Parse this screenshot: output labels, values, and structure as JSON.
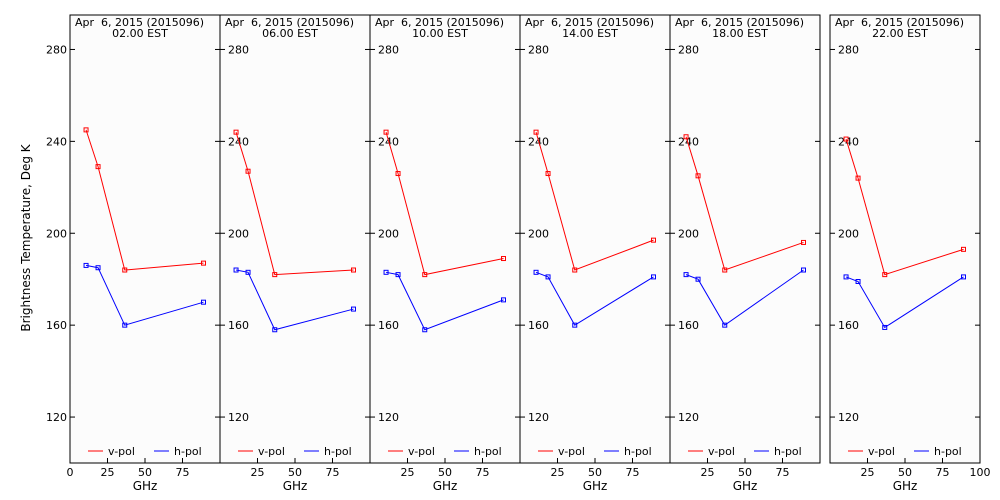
{
  "figure": {
    "ylabel": "Brightness Temperature, Deg K",
    "xlabel": "GHz"
  },
  "legend": {
    "v_label": "v-pol",
    "h_label": "h-pol"
  },
  "colors": {
    "v_pol": "#ff0000",
    "h_pol": "#0000ff",
    "panel_bg": "#fcfcfc",
    "frame": "#000000"
  },
  "chart_data": [
    {
      "type": "line",
      "title": "Apr  6, 2015 (2015096)",
      "subtitle": "02.00 EST",
      "xlabel": "GHz",
      "ylabel": "Brightness Temperature, Deg K",
      "xlim": [
        0,
        100
      ],
      "ylim": [
        100,
        295
      ],
      "x_ticks": [
        0,
        25,
        50,
        75
      ],
      "x_tick_labels": [
        "0",
        "25",
        "50",
        "75"
      ],
      "y_ticks": [
        120,
        160,
        200,
        240,
        280
      ],
      "grid": false,
      "legend_position": "bottom",
      "series": [
        {
          "name": "v-pol",
          "x": [
            10.7,
            18.7,
            36.5,
            89.0
          ],
          "y": [
            245,
            229,
            184,
            187
          ]
        },
        {
          "name": "h-pol",
          "x": [
            10.7,
            18.7,
            36.5,
            89.0
          ],
          "y": [
            186,
            185,
            160,
            170
          ]
        }
      ]
    },
    {
      "type": "line",
      "title": "Apr  6, 2015 (2015096)",
      "subtitle": "06.00 EST",
      "xlabel": "GHz",
      "xlim": [
        0,
        100
      ],
      "ylim": [
        100,
        295
      ],
      "x_ticks": [
        25,
        50,
        75
      ],
      "x_tick_labels": [
        "25",
        "50",
        "75"
      ],
      "y_ticks": [
        120,
        160,
        200,
        240,
        280
      ],
      "grid": false,
      "legend_position": "bottom",
      "series": [
        {
          "name": "v-pol",
          "x": [
            10.7,
            18.7,
            36.5,
            89.0
          ],
          "y": [
            244,
            227,
            182,
            184
          ]
        },
        {
          "name": "h-pol",
          "x": [
            10.7,
            18.7,
            36.5,
            89.0
          ],
          "y": [
            184,
            183,
            158,
            167
          ]
        }
      ]
    },
    {
      "type": "line",
      "title": "Apr  6, 2015 (2015096)",
      "subtitle": "10.00 EST",
      "xlabel": "GHz",
      "xlim": [
        0,
        100
      ],
      "ylim": [
        100,
        295
      ],
      "x_ticks": [
        25,
        50,
        75
      ],
      "x_tick_labels": [
        "25",
        "50",
        "75"
      ],
      "y_ticks": [
        120,
        160,
        200,
        240,
        280
      ],
      "grid": false,
      "legend_position": "bottom",
      "series": [
        {
          "name": "v-pol",
          "x": [
            10.7,
            18.7,
            36.5,
            89.0
          ],
          "y": [
            244,
            226,
            182,
            189
          ]
        },
        {
          "name": "h-pol",
          "x": [
            10.7,
            18.7,
            36.5,
            89.0
          ],
          "y": [
            183,
            182,
            158,
            171
          ]
        }
      ]
    },
    {
      "type": "line",
      "title": "Apr  6, 2015 (2015096)",
      "subtitle": "14.00 EST",
      "xlabel": "GHz",
      "xlim": [
        0,
        100
      ],
      "ylim": [
        100,
        295
      ],
      "x_ticks": [
        25,
        50,
        75
      ],
      "x_tick_labels": [
        "25",
        "50",
        "75"
      ],
      "y_ticks": [
        120,
        160,
        200,
        240,
        280
      ],
      "grid": false,
      "legend_position": "bottom",
      "series": [
        {
          "name": "v-pol",
          "x": [
            10.7,
            18.7,
            36.5,
            89.0
          ],
          "y": [
            244,
            226,
            184,
            197
          ]
        },
        {
          "name": "h-pol",
          "x": [
            10.7,
            18.7,
            36.5,
            89.0
          ],
          "y": [
            183,
            181,
            160,
            181
          ]
        }
      ]
    },
    {
      "type": "line",
      "title": "Apr  6, 2015 (2015096)",
      "subtitle": "18.00 EST",
      "xlabel": "GHz",
      "xlim": [
        0,
        100
      ],
      "ylim": [
        100,
        295
      ],
      "x_ticks": [
        25,
        50,
        75
      ],
      "x_tick_labels": [
        "25",
        "50",
        "75"
      ],
      "y_ticks": [
        120,
        160,
        200,
        240,
        280
      ],
      "grid": false,
      "legend_position": "bottom",
      "series": [
        {
          "name": "v-pol",
          "x": [
            10.7,
            18.7,
            36.5,
            89.0
          ],
          "y": [
            242,
            225,
            184,
            196
          ]
        },
        {
          "name": "h-pol",
          "x": [
            10.7,
            18.7,
            36.5,
            89.0
          ],
          "y": [
            182,
            180,
            160,
            184
          ]
        }
      ]
    },
    {
      "type": "line",
      "title": "Apr  6, 2015 (2015096)",
      "subtitle": "22.00 EST",
      "xlabel": "GHz",
      "xlim": [
        0,
        100
      ],
      "ylim": [
        100,
        295
      ],
      "x_ticks": [
        25,
        50,
        75,
        100
      ],
      "x_tick_labels": [
        "25",
        "50",
        "75",
        "100"
      ],
      "y_ticks": [
        120,
        160,
        200,
        240,
        280
      ],
      "grid": false,
      "legend_position": "bottom",
      "series": [
        {
          "name": "v-pol",
          "x": [
            10.7,
            18.7,
            36.5,
            89.0
          ],
          "y": [
            241,
            224,
            182,
            193
          ]
        },
        {
          "name": "h-pol",
          "x": [
            10.7,
            18.7,
            36.5,
            89.0
          ],
          "y": [
            181,
            179,
            159,
            181
          ]
        }
      ]
    }
  ]
}
